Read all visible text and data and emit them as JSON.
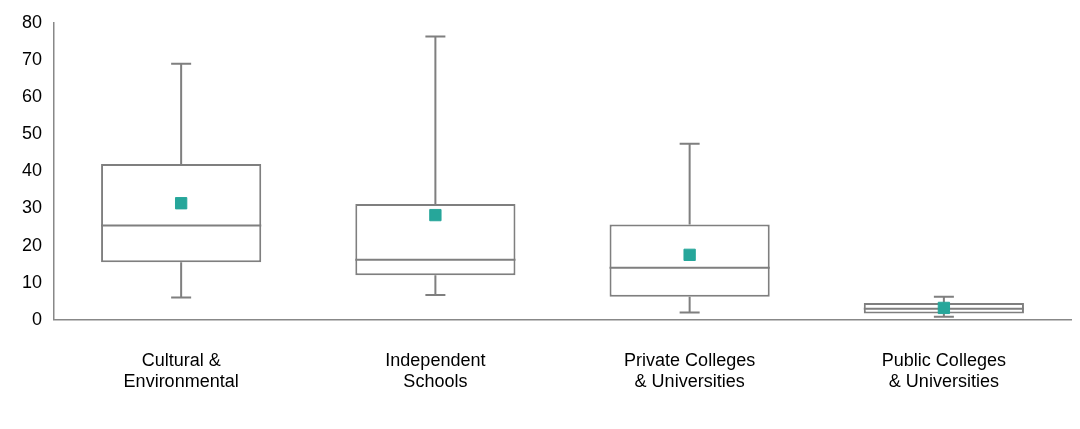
{
  "chart_data": {
    "type": "box",
    "categories": [
      "Cultural & Environmental",
      "Independent Schools",
      "Private Colleges & Universities",
      "Public Colleges & Universities"
    ],
    "series": [
      {
        "color": "#7f7f7f",
        "boxes": [
          {
            "low": 6,
            "q1": 15.5,
            "median": 25.4,
            "q3": 42,
            "high": 69
          },
          {
            "low": 6.7,
            "q1": 12,
            "median": 16.2,
            "q3": 31.2,
            "high": 76.3
          },
          {
            "low": 2,
            "q1": 6.2,
            "median": 14,
            "q3": 25.7,
            "high": 47.4
          },
          {
            "low": 0.8,
            "q1": 1.7,
            "median": 3,
            "q3": 4.5,
            "high": 6.2
          }
        ]
      },
      {
        "type": "scatter",
        "color": "#26a69a",
        "marker": "square",
        "x": [
          "Cultural & Environmental",
          "Independent Schools",
          "Private Colleges & Universities",
          "Public Colleges & Universities"
        ],
        "values": [
          31.4,
          28.2,
          17.5,
          3.2
        ]
      }
    ],
    "ylim": [
      0,
      80
    ],
    "yticks": [
      0,
      10,
      20,
      30,
      40,
      50,
      60,
      70,
      80
    ],
    "grid": false,
    "legend": false
  }
}
